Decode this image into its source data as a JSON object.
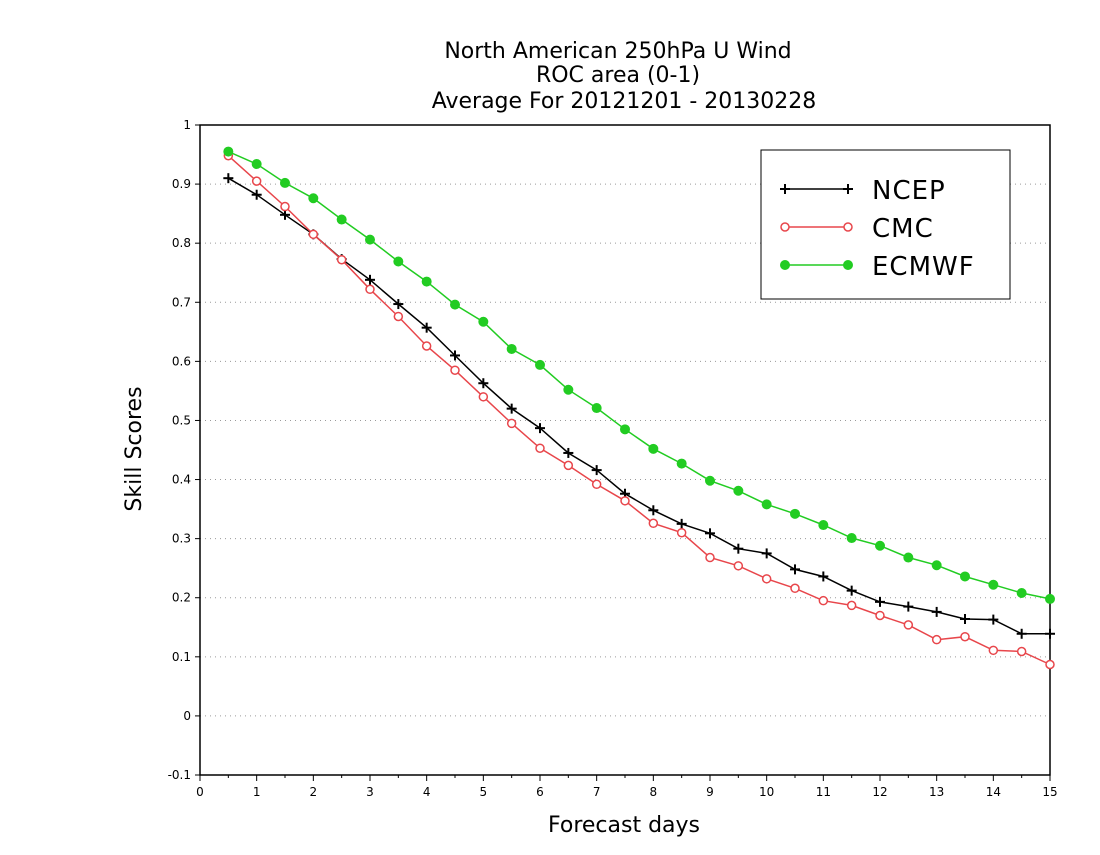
{
  "chart_data": {
    "type": "line",
    "title": [
      "North American 250hPa U Wind",
      "ROC area (0-1)",
      "Average For 20121201 - 20130228"
    ],
    "xlabel": "Forecast days",
    "ylabel": "Skill Scores",
    "xlim": [
      0,
      15
    ],
    "ylim": [
      -0.1,
      1
    ],
    "xticks": [
      "0",
      "1",
      "2",
      "3",
      "4",
      "5",
      "6",
      "7",
      "8",
      "9",
      "10",
      "11",
      "12",
      "13",
      "14",
      "15"
    ],
    "yticks": [
      "-0.1",
      "0",
      "0.1",
      "0.2",
      "0.3",
      "0.4",
      "0.5",
      "0.6",
      "0.7",
      "0.8",
      "0.9",
      "1"
    ],
    "grid": "horizontal dotted",
    "legend_position": "top-right",
    "x": [
      0.5,
      1,
      1.5,
      2,
      2.5,
      3,
      3.5,
      4,
      4.5,
      5,
      5.5,
      6,
      6.5,
      7,
      7.5,
      8,
      8.5,
      9,
      9.5,
      10,
      10.5,
      11,
      11.5,
      12,
      12.5,
      13,
      13.5,
      14,
      14.5,
      15
    ],
    "series": [
      {
        "name": "NCEP",
        "color": "#000000",
        "marker": "plus",
        "values": [
          0.91,
          0.882,
          0.848,
          0.815,
          0.773,
          0.738,
          0.697,
          0.657,
          0.61,
          0.563,
          0.52,
          0.487,
          0.445,
          0.416,
          0.376,
          0.348,
          0.325,
          0.309,
          0.283,
          0.275,
          0.248,
          0.236,
          0.212,
          0.193,
          0.185,
          0.176,
          0.164,
          0.163,
          0.139,
          0.139
        ]
      },
      {
        "name": "CMC",
        "color": "#e8464b",
        "marker": "open-circle",
        "values": [
          0.948,
          0.905,
          0.862,
          0.815,
          0.772,
          0.722,
          0.676,
          0.626,
          0.585,
          0.54,
          0.495,
          0.453,
          0.424,
          0.392,
          0.364,
          0.326,
          0.31,
          0.268,
          0.254,
          0.232,
          0.216,
          0.195,
          0.187,
          0.17,
          0.154,
          0.129,
          0.134,
          0.111,
          0.109,
          0.087
        ]
      },
      {
        "name": "ECMWF",
        "color": "#22cc22",
        "marker": "filled-circle",
        "values": [
          0.955,
          0.934,
          0.902,
          0.876,
          0.84,
          0.806,
          0.769,
          0.735,
          0.696,
          0.667,
          0.621,
          0.594,
          0.552,
          0.521,
          0.485,
          0.452,
          0.427,
          0.398,
          0.381,
          0.358,
          0.342,
          0.323,
          0.301,
          0.288,
          0.268,
          0.255,
          0.236,
          0.222,
          0.208,
          0.198
        ]
      }
    ]
  }
}
